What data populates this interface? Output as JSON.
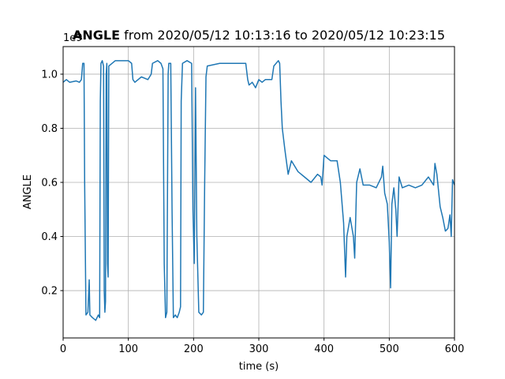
{
  "chart_data": {
    "type": "line",
    "title": {
      "bold": "ANGLE",
      "rest": "from 2020/05/12 10:13:16 to 2020/05/12 10:23:15"
    },
    "x_label": "time (s)",
    "y_label": "ANGLE",
    "y_offset_label": "1e9",
    "xlim": [
      0,
      600
    ],
    "xticks": [
      0,
      100,
      200,
      300,
      400,
      500,
      600
    ],
    "ylim": [
      0.025,
      1.102
    ],
    "yticks": [
      0.2,
      0.4,
      0.6,
      0.8,
      {
        "value": 1,
        "label": "1.0"
      }
    ],
    "grid": true,
    "x": [
      0,
      5,
      10,
      20,
      25,
      28,
      30,
      32,
      33,
      35,
      38,
      40,
      41,
      45,
      50,
      54,
      56,
      57,
      58,
      60,
      62,
      63,
      64,
      65,
      66,
      67,
      68,
      69,
      70,
      80,
      100,
      105,
      107,
      110,
      120,
      130,
      135,
      137,
      145,
      150,
      153,
      155,
      157,
      159,
      161,
      162,
      165,
      167,
      169,
      172,
      175,
      178,
      180,
      181,
      183,
      190,
      197,
      199,
      201,
      203,
      205,
      208,
      212,
      215,
      217,
      219,
      221,
      240,
      260,
      280,
      283,
      285,
      290,
      295,
      300,
      305,
      310,
      320,
      323,
      330,
      332,
      334,
      336,
      340,
      345,
      350,
      360,
      370,
      380,
      390,
      395,
      397,
      400,
      405,
      410,
      420,
      425,
      430,
      433,
      435,
      440,
      445,
      447,
      450,
      455,
      460,
      470,
      480,
      488,
      490,
      493,
      497,
      500,
      502,
      504,
      507,
      510,
      512,
      515,
      520,
      530,
      540,
      550,
      560,
      568,
      570,
      573,
      578,
      582,
      586,
      590,
      593,
      595,
      597,
      600
    ],
    "series": [
      {
        "name": "ANGLE",
        "color": "#1f77b4",
        "values": [
          0.97,
          0.98,
          0.97,
          0.975,
          0.97,
          0.98,
          1.04,
          1.04,
          0.6,
          0.11,
          0.12,
          0.24,
          0.11,
          0.1,
          0.09,
          0.11,
          0.1,
          0.9,
          1.04,
          1.05,
          1.03,
          0.2,
          0.12,
          0.16,
          1.0,
          1.04,
          0.3,
          0.25,
          1.03,
          1.05,
          1.05,
          1.04,
          0.98,
          0.97,
          0.99,
          0.98,
          1.0,
          1.04,
          1.05,
          1.04,
          1.02,
          0.3,
          0.1,
          0.12,
          1.0,
          1.04,
          1.04,
          0.5,
          0.1,
          0.11,
          0.1,
          0.12,
          0.14,
          0.9,
          1.04,
          1.05,
          1.04,
          0.5,
          0.3,
          0.95,
          0.4,
          0.12,
          0.11,
          0.12,
          0.6,
          0.99,
          1.03,
          1.04,
          1.04,
          1.04,
          0.98,
          0.96,
          0.97,
          0.95,
          0.98,
          0.97,
          0.98,
          0.98,
          1.03,
          1.05,
          1.04,
          0.9,
          0.8,
          0.72,
          0.63,
          0.68,
          0.64,
          0.62,
          0.6,
          0.63,
          0.62,
          0.59,
          0.7,
          0.69,
          0.68,
          0.68,
          0.6,
          0.45,
          0.25,
          0.4,
          0.47,
          0.4,
          0.32,
          0.6,
          0.65,
          0.59,
          0.59,
          0.58,
          0.62,
          0.66,
          0.56,
          0.52,
          0.38,
          0.21,
          0.52,
          0.58,
          0.5,
          0.4,
          0.62,
          0.58,
          0.59,
          0.58,
          0.59,
          0.62,
          0.59,
          0.67,
          0.63,
          0.51,
          0.47,
          0.42,
          0.43,
          0.48,
          0.4,
          0.61,
          0.59
        ]
      }
    ]
  }
}
